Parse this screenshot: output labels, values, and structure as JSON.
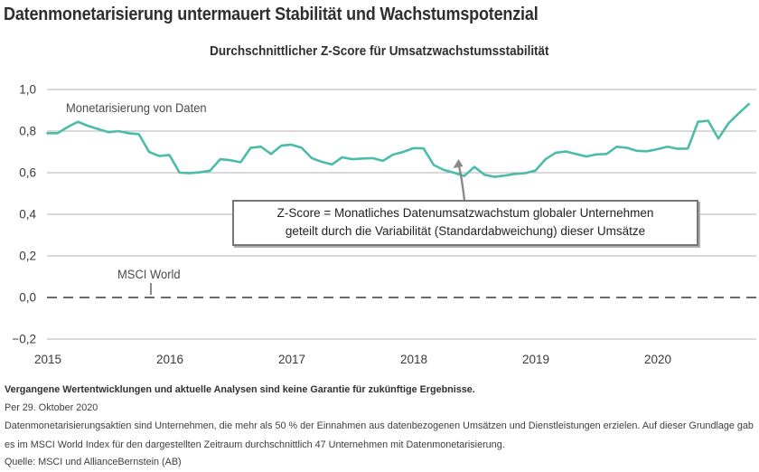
{
  "header": {
    "title": "Datenmonetarisierung untermauert Stabilität und Wachstumspotenzial",
    "subtitle": "Durchschnittlicher Z-Score für Umsatzwachstumsstabilität"
  },
  "chart_data": {
    "type": "line",
    "title": "Durchschnittlicher Z-Score für Umsatzwachstumsstabilität",
    "x_unit": "month",
    "x_start": "2015-01",
    "x_end": "2020-10",
    "x_tick_labels": [
      "2015",
      "2016",
      "2017",
      "2018",
      "2019",
      "2020"
    ],
    "y_ticks": [
      1.0,
      0.8,
      0.6,
      0.4,
      0.2,
      0.0,
      -0.2
    ],
    "y_tick_labels": [
      "1,0",
      "0,8",
      "0,6",
      "0,4",
      "0,2",
      "0,0",
      "−0,2"
    ],
    "ylim": [
      -0.28,
      1.06
    ],
    "grid": true,
    "series": [
      {
        "name": "Monetarisierung von Daten",
        "color": "#4CBCAA",
        "style": "solid",
        "values": [
          0.79,
          0.79,
          0.82,
          0.845,
          0.825,
          0.81,
          0.795,
          0.8,
          0.79,
          0.785,
          0.7,
          0.68,
          0.685,
          0.6,
          0.598,
          0.602,
          0.61,
          0.665,
          0.66,
          0.65,
          0.72,
          0.725,
          0.69,
          0.73,
          0.735,
          0.72,
          0.67,
          0.652,
          0.64,
          0.674,
          0.665,
          0.668,
          0.67,
          0.657,
          0.687,
          0.7,
          0.718,
          0.717,
          0.637,
          0.613,
          0.6,
          0.584,
          0.628,
          0.59,
          0.58,
          0.586,
          0.594,
          0.598,
          0.61,
          0.665,
          0.696,
          0.702,
          0.69,
          0.678,
          0.688,
          0.69,
          0.725,
          0.72,
          0.705,
          0.703,
          0.713,
          0.725,
          0.715,
          0.716,
          0.845,
          0.85,
          0.764,
          0.838,
          0.885,
          0.93
        ]
      },
      {
        "name": "MSCI World",
        "color": "#666666",
        "style": "dashed",
        "constant_value": 0.0
      }
    ]
  },
  "labels": {
    "series_data_monetization": "Monetarisierung von Daten",
    "series_msci_world": "MSCI World"
  },
  "annotation": {
    "line1": "Z-Score = Monatliches Datenumsatzwachstum globaler Unternehmen",
    "line2": "geteilt durch die Variabilität (Standardabweichung) dieser Umsätze"
  },
  "footer": {
    "disclaimer": "Vergangene Wertentwicklungen und aktuelle Analysen sind keine Garantie für zukünftige Ergebnisse.",
    "as_of": "Per 29. Oktober 2020",
    "note": "Datenmonetarisierungsaktien sind Unternehmen, die mehr als 50 % der Einnahmen aus datenbezogenen Umsätzen und Dienstleistungen erzielen. Auf dieser Grundlage gab es im MSCI World Index für den dargestellten Zeitraum durchschnittlich 47 Unternehmen mit Datenmonetarisierung.",
    "source": "Quelle: MSCI und AllianceBernstein (AB)"
  },
  "colors": {
    "line": "#4CBCAA",
    "grid": "#b3b3b3",
    "zero_line": "#6a6a6a",
    "axis_text": "#3a3a3a",
    "label_text": "#4a4a4a",
    "arrow": "#8a8a8a"
  }
}
